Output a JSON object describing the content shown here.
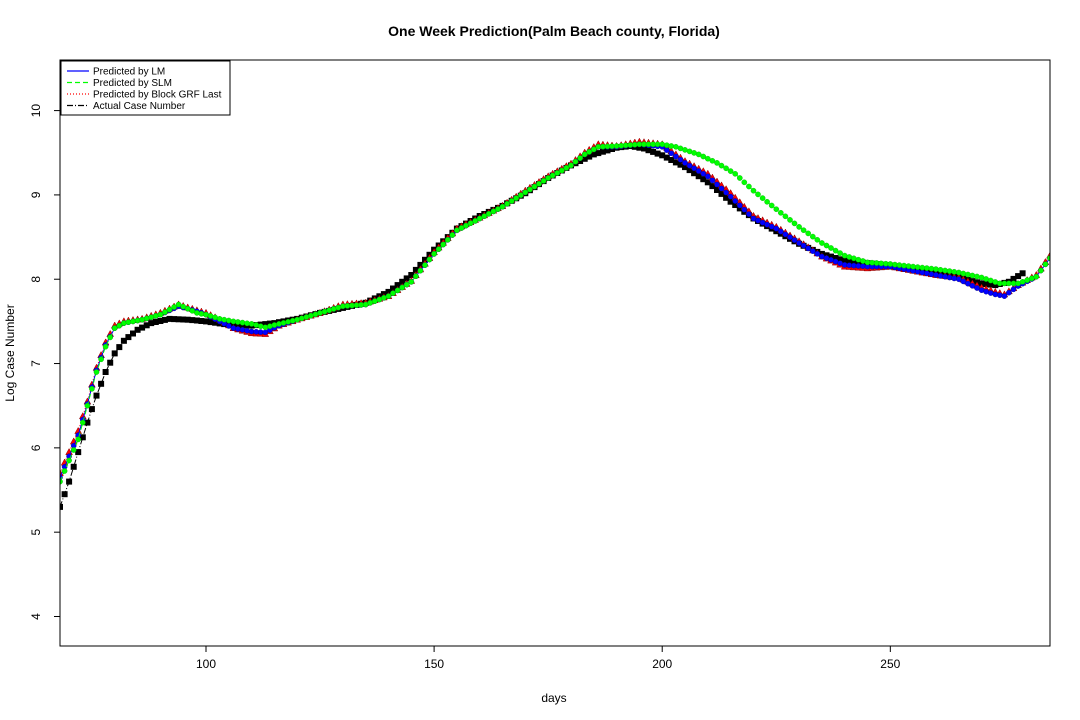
{
  "chart_data": {
    "type": "line",
    "title": "One Week Prediction(Palm Beach county, Florida)",
    "xlabel": "days",
    "ylabel": "Log Case Number",
    "xlim": [
      68,
      285
    ],
    "ylim": [
      3.65,
      10.6
    ],
    "xticks": [
      100,
      150,
      200,
      250
    ],
    "yticks": [
      4,
      5,
      6,
      7,
      8,
      9,
      10
    ],
    "grid": false,
    "legend_position": "top-left",
    "legend": [
      {
        "label": "Predicted by LM",
        "color": "#0000ff",
        "line": "solid"
      },
      {
        "label": "Predicted by SLM",
        "color": "#00ff00",
        "line": "dashed"
      },
      {
        "label": "Predicted by Block GRF Last",
        "color": "#ff0000",
        "line": "dotted"
      },
      {
        "label": "Actual Case Number",
        "color": "#000000",
        "line": "dashdot"
      }
    ],
    "series": [
      {
        "name": "Actual Case Number",
        "color": "#000000",
        "marker": "square",
        "x_start": 68,
        "x_end": 279,
        "knots": [
          [
            68,
            5.3
          ],
          [
            70,
            5.6
          ],
          [
            72,
            5.95
          ],
          [
            74,
            6.3
          ],
          [
            76,
            6.62
          ],
          [
            78,
            6.9
          ],
          [
            80,
            7.12
          ],
          [
            82,
            7.27
          ],
          [
            85,
            7.4
          ],
          [
            88,
            7.48
          ],
          [
            92,
            7.53
          ],
          [
            96,
            7.52
          ],
          [
            100,
            7.5
          ],
          [
            105,
            7.46
          ],
          [
            110,
            7.45
          ],
          [
            115,
            7.48
          ],
          [
            120,
            7.53
          ],
          [
            125,
            7.6
          ],
          [
            130,
            7.66
          ],
          [
            135,
            7.72
          ],
          [
            140,
            7.85
          ],
          [
            145,
            8.05
          ],
          [
            150,
            8.35
          ],
          [
            155,
            8.6
          ],
          [
            160,
            8.75
          ],
          [
            165,
            8.87
          ],
          [
            170,
            9.02
          ],
          [
            175,
            9.2
          ],
          [
            180,
            9.35
          ],
          [
            185,
            9.48
          ],
          [
            190,
            9.56
          ],
          [
            193,
            9.58
          ],
          [
            196,
            9.55
          ],
          [
            200,
            9.47
          ],
          [
            205,
            9.33
          ],
          [
            210,
            9.15
          ],
          [
            215,
            8.92
          ],
          [
            220,
            8.72
          ],
          [
            225,
            8.57
          ],
          [
            230,
            8.42
          ],
          [
            235,
            8.3
          ],
          [
            240,
            8.22
          ],
          [
            245,
            8.19
          ],
          [
            250,
            8.16
          ],
          [
            255,
            8.12
          ],
          [
            260,
            8.07
          ],
          [
            265,
            8.02
          ],
          [
            270,
            7.95
          ],
          [
            273,
            7.93
          ],
          [
            276,
            7.97
          ],
          [
            279,
            8.07
          ]
        ]
      },
      {
        "name": "Predicted by Block GRF Last",
        "color": "#ff0000",
        "marker": "triangle",
        "x_start": 68,
        "x_end": 285,
        "knots": [
          [
            68,
            5.7
          ],
          [
            70,
            5.95
          ],
          [
            72,
            6.2
          ],
          [
            74,
            6.55
          ],
          [
            76,
            6.95
          ],
          [
            78,
            7.25
          ],
          [
            80,
            7.45
          ],
          [
            82,
            7.5
          ],
          [
            86,
            7.53
          ],
          [
            90,
            7.6
          ],
          [
            94,
            7.7
          ],
          [
            98,
            7.63
          ],
          [
            100,
            7.6
          ],
          [
            103,
            7.52
          ],
          [
            106,
            7.42
          ],
          [
            110,
            7.36
          ],
          [
            113,
            7.35
          ],
          [
            116,
            7.45
          ],
          [
            120,
            7.52
          ],
          [
            125,
            7.6
          ],
          [
            130,
            7.7
          ],
          [
            135,
            7.72
          ],
          [
            140,
            7.8
          ],
          [
            145,
            7.98
          ],
          [
            150,
            8.32
          ],
          [
            155,
            8.6
          ],
          [
            160,
            8.73
          ],
          [
            165,
            8.87
          ],
          [
            170,
            9.05
          ],
          [
            175,
            9.22
          ],
          [
            180,
            9.37
          ],
          [
            183,
            9.5
          ],
          [
            186,
            9.6
          ],
          [
            190,
            9.58
          ],
          [
            195,
            9.63
          ],
          [
            200,
            9.6
          ],
          [
            205,
            9.4
          ],
          [
            210,
            9.25
          ],
          [
            215,
            9.02
          ],
          [
            220,
            8.75
          ],
          [
            225,
            8.62
          ],
          [
            230,
            8.45
          ],
          [
            235,
            8.27
          ],
          [
            240,
            8.15
          ],
          [
            245,
            8.13
          ],
          [
            250,
            8.15
          ],
          [
            255,
            8.1
          ],
          [
            260,
            8.05
          ],
          [
            265,
            8.02
          ],
          [
            270,
            7.9
          ],
          [
            273,
            7.85
          ],
          [
            275,
            7.82
          ],
          [
            278,
            7.93
          ],
          [
            282,
            8.05
          ],
          [
            285,
            8.28
          ]
        ]
      },
      {
        "name": "Predicted by LM",
        "color": "#0000ff",
        "marker": "circle",
        "x_start": 68,
        "x_end": 285,
        "knots": [
          [
            68,
            5.65
          ],
          [
            70,
            5.9
          ],
          [
            72,
            6.15
          ],
          [
            74,
            6.52
          ],
          [
            76,
            6.92
          ],
          [
            78,
            7.22
          ],
          [
            80,
            7.42
          ],
          [
            82,
            7.48
          ],
          [
            86,
            7.52
          ],
          [
            90,
            7.58
          ],
          [
            94,
            7.68
          ],
          [
            98,
            7.62
          ],
          [
            100,
            7.58
          ],
          [
            103,
            7.5
          ],
          [
            106,
            7.42
          ],
          [
            110,
            7.38
          ],
          [
            113,
            7.37
          ],
          [
            116,
            7.45
          ],
          [
            120,
            7.52
          ],
          [
            125,
            7.6
          ],
          [
            130,
            7.68
          ],
          [
            135,
            7.7
          ],
          [
            140,
            7.8
          ],
          [
            145,
            7.97
          ],
          [
            150,
            8.3
          ],
          [
            155,
            8.58
          ],
          [
            160,
            8.72
          ],
          [
            165,
            8.86
          ],
          [
            170,
            9.03
          ],
          [
            175,
            9.2
          ],
          [
            180,
            9.35
          ],
          [
            183,
            9.48
          ],
          [
            186,
            9.57
          ],
          [
            190,
            9.57
          ],
          [
            195,
            9.6
          ],
          [
            200,
            9.57
          ],
          [
            205,
            9.38
          ],
          [
            210,
            9.22
          ],
          [
            215,
            8.98
          ],
          [
            220,
            8.72
          ],
          [
            225,
            8.6
          ],
          [
            230,
            8.43
          ],
          [
            235,
            8.27
          ],
          [
            240,
            8.17
          ],
          [
            245,
            8.15
          ],
          [
            250,
            8.15
          ],
          [
            255,
            8.1
          ],
          [
            260,
            8.05
          ],
          [
            265,
            8.0
          ],
          [
            270,
            7.87
          ],
          [
            273,
            7.82
          ],
          [
            275,
            7.8
          ],
          [
            278,
            7.92
          ],
          [
            282,
            8.03
          ],
          [
            285,
            8.25
          ]
        ]
      },
      {
        "name": "Predicted by SLM",
        "color": "#00ff00",
        "marker": "circle",
        "x_start": 68,
        "x_end": 285,
        "knots": [
          [
            68,
            5.6
          ],
          [
            70,
            5.85
          ],
          [
            72,
            6.1
          ],
          [
            74,
            6.5
          ],
          [
            76,
            6.9
          ],
          [
            78,
            7.2
          ],
          [
            80,
            7.42
          ],
          [
            82,
            7.48
          ],
          [
            86,
            7.52
          ],
          [
            90,
            7.58
          ],
          [
            94,
            7.7
          ],
          [
            98,
            7.6
          ],
          [
            100,
            7.58
          ],
          [
            103,
            7.53
          ],
          [
            106,
            7.5
          ],
          [
            110,
            7.47
          ],
          [
            113,
            7.43
          ],
          [
            116,
            7.47
          ],
          [
            120,
            7.52
          ],
          [
            125,
            7.6
          ],
          [
            130,
            7.68
          ],
          [
            135,
            7.7
          ],
          [
            140,
            7.8
          ],
          [
            145,
            7.97
          ],
          [
            150,
            8.3
          ],
          [
            155,
            8.58
          ],
          [
            160,
            8.72
          ],
          [
            165,
            8.86
          ],
          [
            170,
            9.03
          ],
          [
            175,
            9.2
          ],
          [
            180,
            9.35
          ],
          [
            183,
            9.48
          ],
          [
            186,
            9.57
          ],
          [
            190,
            9.58
          ],
          [
            195,
            9.6
          ],
          [
            200,
            9.6
          ],
          [
            203,
            9.57
          ],
          [
            208,
            9.48
          ],
          [
            212,
            9.38
          ],
          [
            216,
            9.25
          ],
          [
            220,
            9.05
          ],
          [
            225,
            8.83
          ],
          [
            230,
            8.62
          ],
          [
            235,
            8.43
          ],
          [
            240,
            8.28
          ],
          [
            245,
            8.2
          ],
          [
            250,
            8.18
          ],
          [
            255,
            8.15
          ],
          [
            260,
            8.12
          ],
          [
            265,
            8.08
          ],
          [
            270,
            8.02
          ],
          [
            274,
            7.95
          ],
          [
            278,
            7.95
          ],
          [
            282,
            8.03
          ],
          [
            285,
            8.25
          ]
        ]
      }
    ]
  }
}
